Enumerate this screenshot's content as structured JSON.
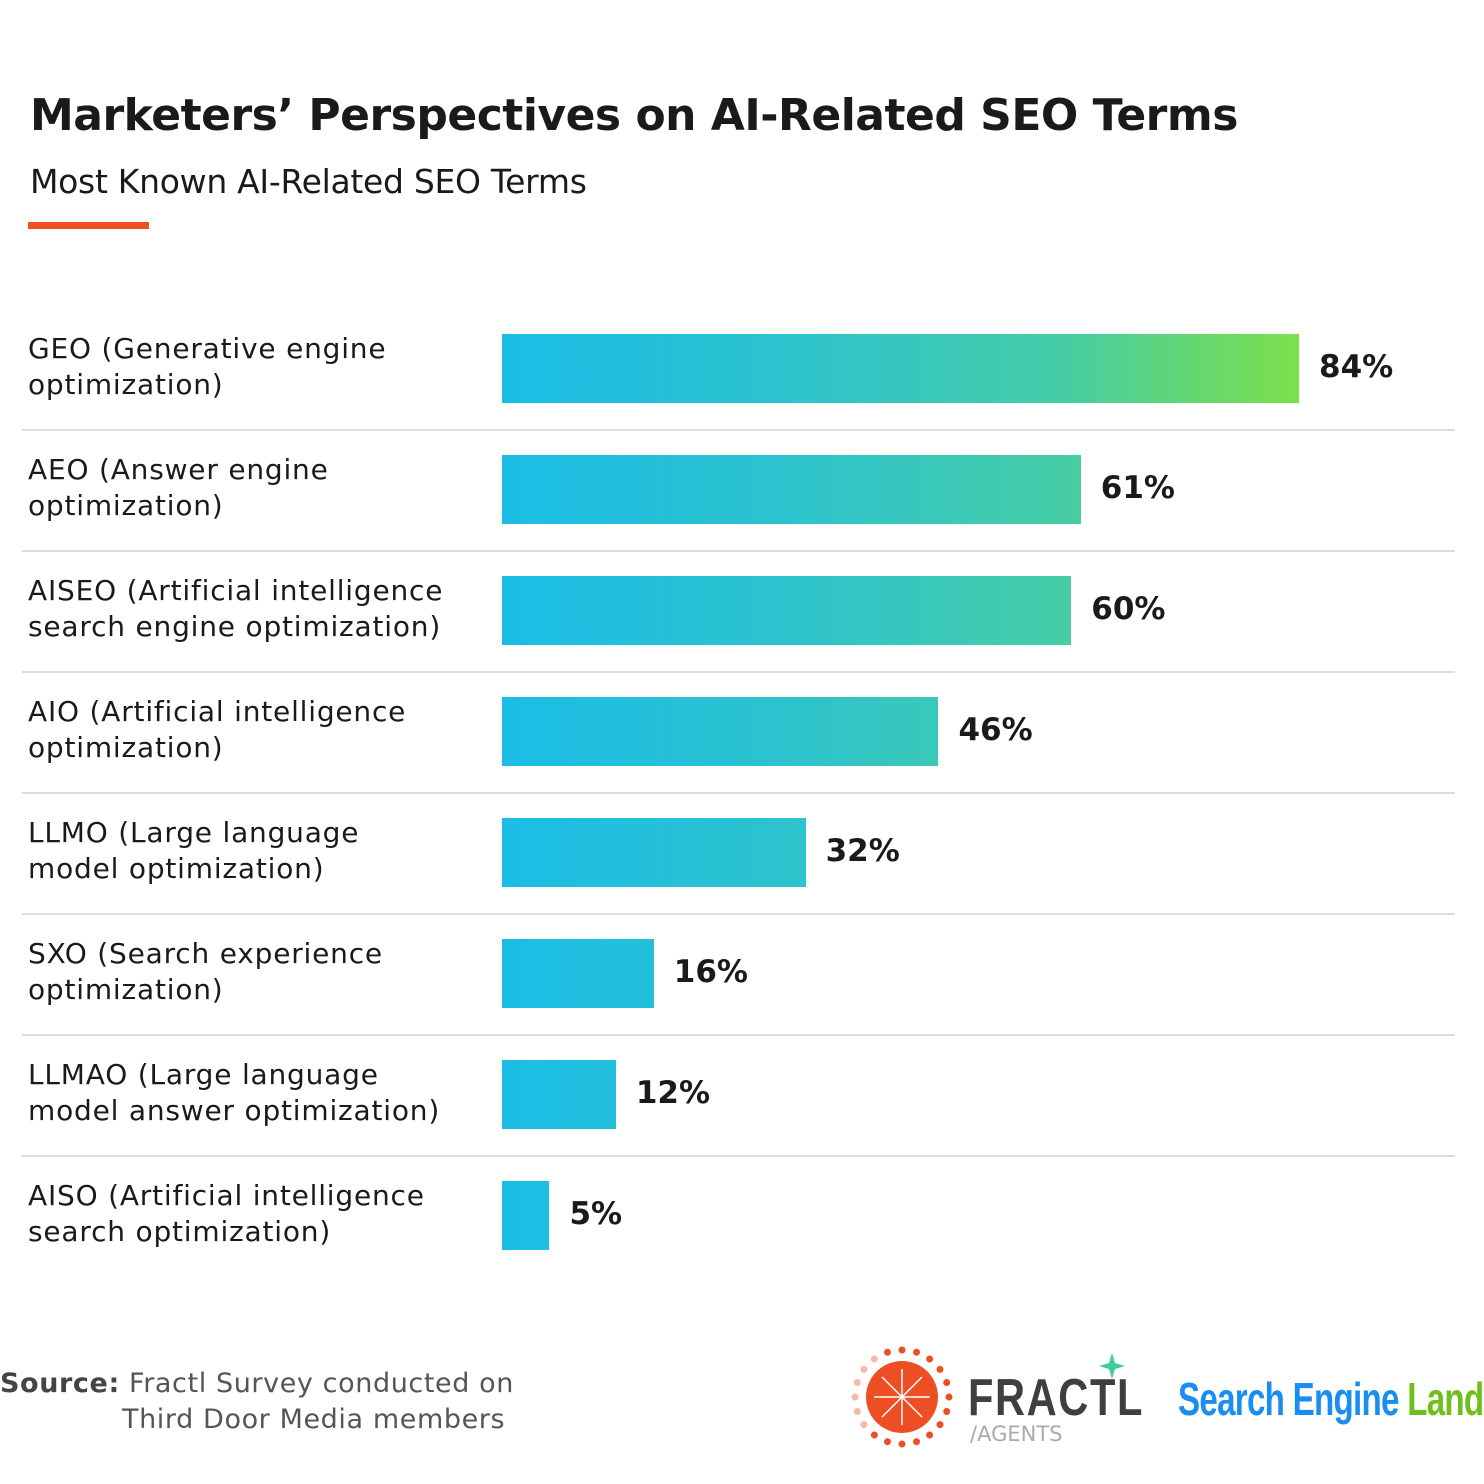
{
  "title": "Marketers’ Perspectives on AI-Related SEO Terms",
  "subtitle": "Most Known AI-Related SEO Terms",
  "colors": {
    "accent": "#f04e23",
    "bar_start": "#1bbde6",
    "bar_end": "#7ce04a",
    "text": "#1a1a1a"
  },
  "chart_data": {
    "type": "bar",
    "orientation": "horizontal",
    "title": "Most Known AI-Related SEO Terms",
    "categories": [
      "GEO (Generative engine optimization)",
      "AEO (Answer engine optimization)",
      "AISEO (Artificial intelligence search engine optimization)",
      "AIO (Artificial intelligence optimization)",
      "LLMO (Large language model optimization)",
      "SXO (Search experience optimization)",
      "LLMAO (Large language model answer optimization)",
      "AISO (Artificial intelligence search optimization)"
    ],
    "category_lines": [
      [
        "GEO (Generative engine",
        "optimization)"
      ],
      [
        "AEO (Answer engine",
        "optimization)"
      ],
      [
        "AISEO (Artificial intelligence",
        "search engine optimization)"
      ],
      [
        "AIO (Artificial intelligence",
        "optimization)"
      ],
      [
        "LLMO (Large language",
        "model optimization)"
      ],
      [
        "SXO (Search experience",
        "optimization)"
      ],
      [
        "LLMAO (Large language",
        "model answer optimization)"
      ],
      [
        "AISO (Artificial intelligence",
        "search optimization)"
      ]
    ],
    "values": [
      84,
      61,
      60,
      46,
      32,
      16,
      12,
      5
    ],
    "data_labels": [
      "84%",
      "61%",
      "60%",
      "46%",
      "32%",
      "16%",
      "12%",
      "5%"
    ],
    "unit": "%",
    "xlim": [
      0,
      84
    ],
    "grid": false,
    "legend": "none"
  },
  "footer": {
    "source_label": "Source:",
    "source_line1": "Fractl Survey conducted on",
    "source_line2": "Third Door Media members",
    "logo_fractl": "FRACTL",
    "logo_fractl_sub": "/AGENTS",
    "logo_sel_a": "Search Engine",
    "logo_sel_b": "Land"
  }
}
